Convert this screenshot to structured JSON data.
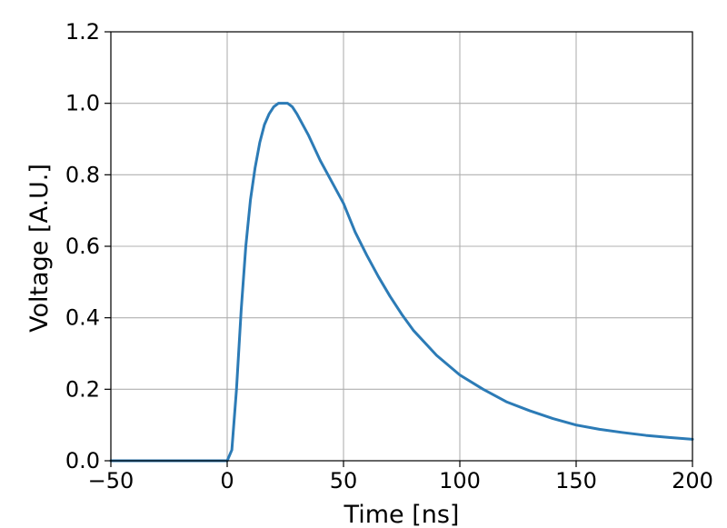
{
  "chart_data": {
    "type": "line",
    "title": "",
    "xlabel": "Time [ns]",
    "ylabel": "Voltage [A.U.]",
    "xlim": [
      -50,
      200
    ],
    "ylim": [
      0.0,
      1.2
    ],
    "x_ticks": [
      -50,
      0,
      50,
      100,
      150,
      200
    ],
    "x_tick_labels": [
      "−50",
      "0",
      "50",
      "100",
      "150",
      "200"
    ],
    "y_ticks": [
      0.0,
      0.2,
      0.4,
      0.6,
      0.8,
      1.0,
      1.2
    ],
    "y_tick_labels": [
      "0.0",
      "0.2",
      "0.4",
      "0.6",
      "0.8",
      "1.0",
      "1.2"
    ],
    "grid": true,
    "legend": "none",
    "series": [
      {
        "color": "#2c7bb6",
        "x": [
          -50,
          -40,
          -30,
          -20,
          -10,
          0,
          2,
          4,
          6,
          8,
          10,
          12,
          14,
          16,
          18,
          20,
          22,
          24,
          25,
          26,
          28,
          30,
          35,
          40,
          45,
          50,
          55,
          60,
          65,
          70,
          75,
          80,
          90,
          100,
          110,
          120,
          130,
          140,
          150,
          160,
          170,
          180,
          190,
          200
        ],
        "y": [
          0.0,
          0.0,
          0.0,
          0.0,
          0.0,
          0.0,
          0.03,
          0.2,
          0.42,
          0.6,
          0.73,
          0.82,
          0.89,
          0.94,
          0.97,
          0.99,
          1.0,
          1.0,
          1.0,
          1.0,
          0.99,
          0.97,
          0.91,
          0.84,
          0.78,
          0.72,
          0.64,
          0.575,
          0.515,
          0.46,
          0.41,
          0.365,
          0.295,
          0.24,
          0.2,
          0.165,
          0.14,
          0.118,
          0.1,
          0.088,
          0.079,
          0.071,
          0.065,
          0.06
        ]
      }
    ]
  }
}
